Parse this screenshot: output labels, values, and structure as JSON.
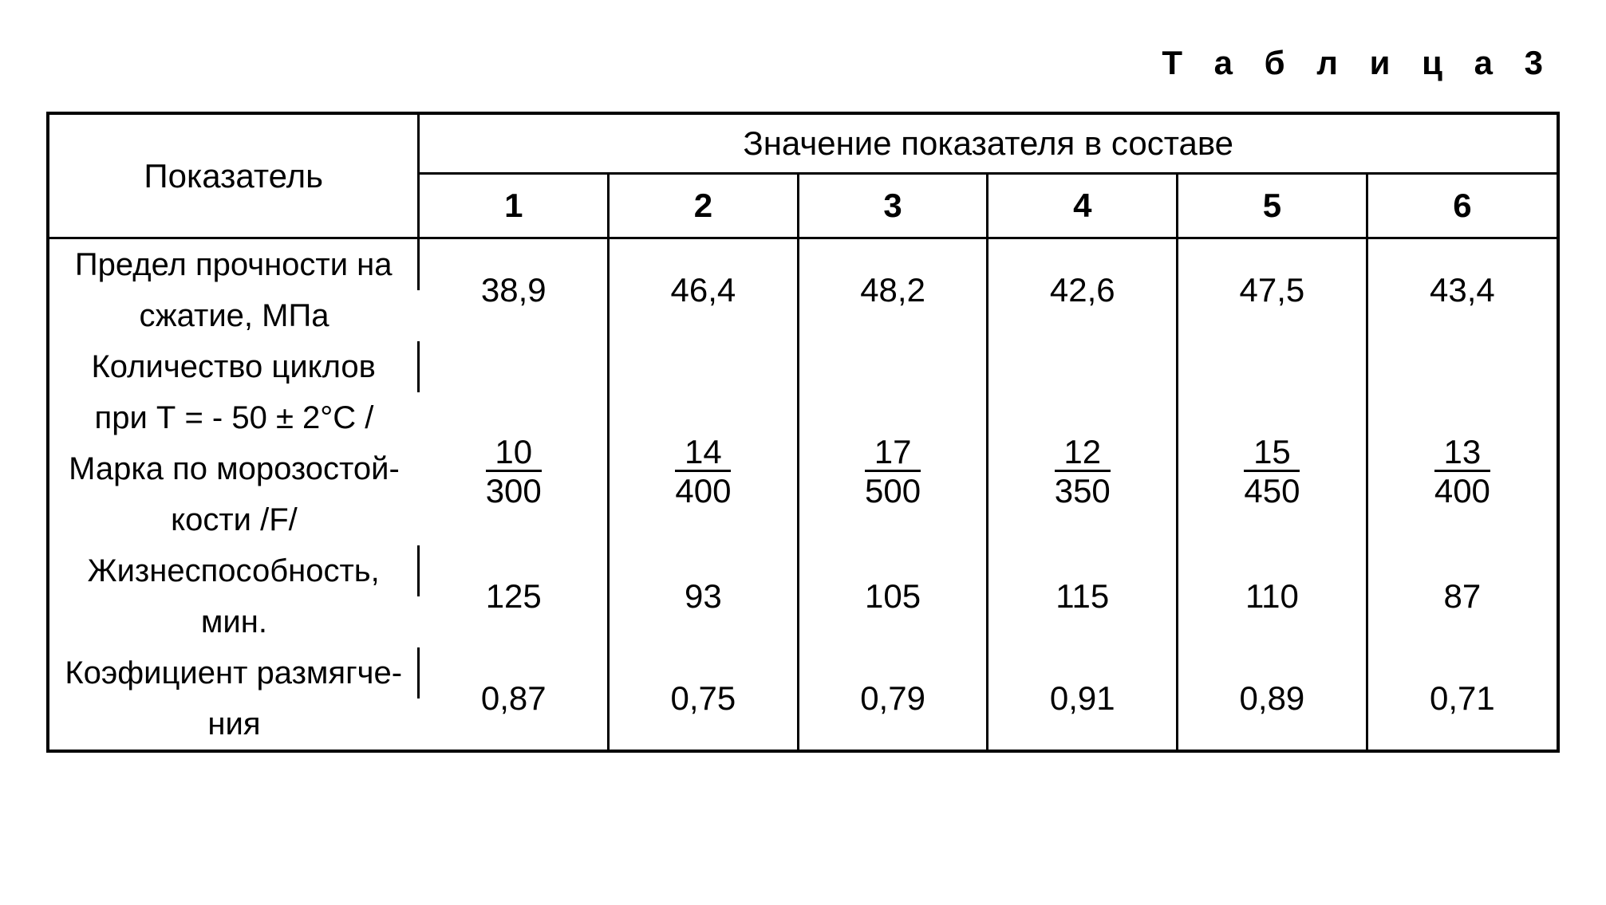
{
  "caption": "Т а б л и ц а 3",
  "table": {
    "type": "table",
    "col_widths_pct": [
      24.5,
      12.58,
      12.58,
      12.58,
      12.58,
      12.58,
      12.58
    ],
    "border_color": "#000000",
    "background_color": "#ffffff",
    "text_color": "#000000",
    "header_fontsize": 42,
    "body_fontsize": 42,
    "param_fontsize": 40,
    "header": {
      "param_label": "Показатель",
      "values_label": "Значение показателя в составе",
      "columns": [
        "1",
        "2",
        "3",
        "4",
        "5",
        "6"
      ]
    },
    "rows": [
      {
        "label_lines": [
          "Предел прочности на",
          "сжатие, МПа"
        ],
        "values": [
          "38,9",
          "46,4",
          "48,2",
          "42,6",
          "47,5",
          "43,4"
        ],
        "value_align_row": 1
      },
      {
        "label_lines": [
          "Количество циклов",
          "при Т = - 50 ± 2°С /",
          "Марка по морозостой-",
          "кости /F/"
        ],
        "values_fraction": {
          "numerators": [
            "10",
            "14",
            "17",
            "12",
            "15",
            "13"
          ],
          "denominators": [
            "300",
            "400",
            "500",
            "350",
            "450",
            "400"
          ]
        },
        "fraction_align_rows": [
          2,
          3
        ]
      },
      {
        "label_lines": [
          "Жизнеспособность,",
          "мин."
        ],
        "values": [
          "125",
          "93",
          "105",
          "115",
          "110",
          "87"
        ],
        "value_align_row": 1
      },
      {
        "label_lines": [
          "Коэфициент размягче-",
          "ния"
        ],
        "values": [
          "0,87",
          "0,75",
          "0,79",
          "0,91",
          "0,89",
          "0,71"
        ],
        "value_align_row": 1
      }
    ]
  }
}
